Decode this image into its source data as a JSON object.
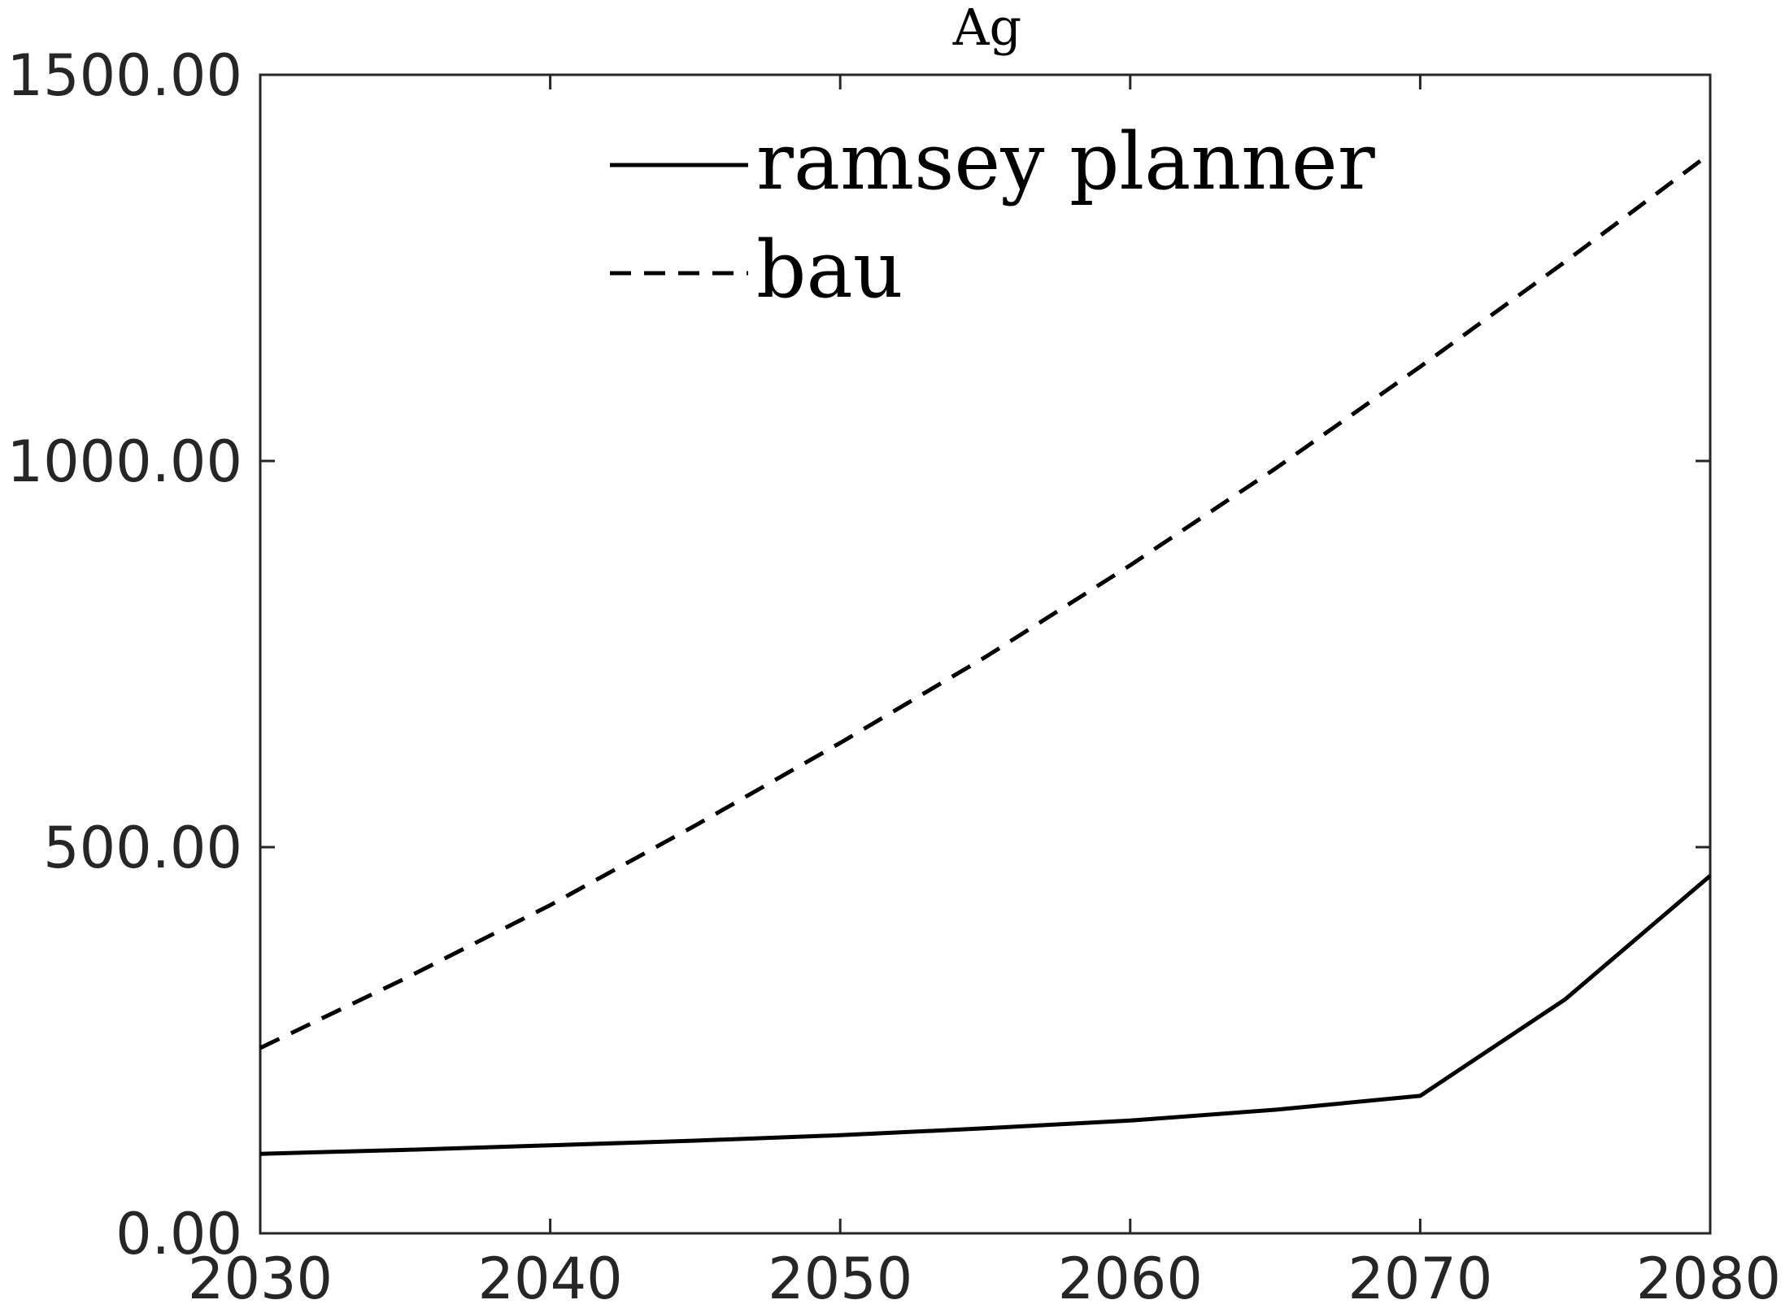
{
  "chart_data": {
    "type": "line",
    "title": "Ag",
    "xlabel": "",
    "ylabel": "",
    "xlim": [
      2030,
      2080
    ],
    "ylim": [
      0,
      1500
    ],
    "x_ticks": [
      "2030",
      "2040",
      "2050",
      "2060",
      "2070",
      "2080"
    ],
    "y_ticks": [
      "0.00",
      "500.00",
      "1000.00",
      "1500.00"
    ],
    "x_tick_values": [
      2030,
      2040,
      2050,
      2060,
      2070,
      2080
    ],
    "y_tick_values": [
      0,
      500,
      1000,
      1500
    ],
    "grid": false,
    "legend_position": "top-center",
    "series": [
      {
        "name": "ramsey planner",
        "style": "solid",
        "color": "#000000",
        "x": [
          2030,
          2035,
          2040,
          2045,
          2050,
          2055,
          2060,
          2065,
          2070,
          2075,
          2080
        ],
        "y": [
          103,
          108,
          114,
          120,
          127,
          136,
          146,
          160,
          178,
          303,
          463
        ]
      },
      {
        "name": "bau",
        "style": "dashed",
        "color": "#000000",
        "x": [
          2030,
          2035,
          2040,
          2045,
          2050,
          2055,
          2060,
          2065,
          2070,
          2075,
          2080
        ],
        "y": [
          240,
          330,
          425,
          528,
          635,
          746,
          865,
          990,
          1122,
          1258,
          1398
        ]
      }
    ]
  }
}
